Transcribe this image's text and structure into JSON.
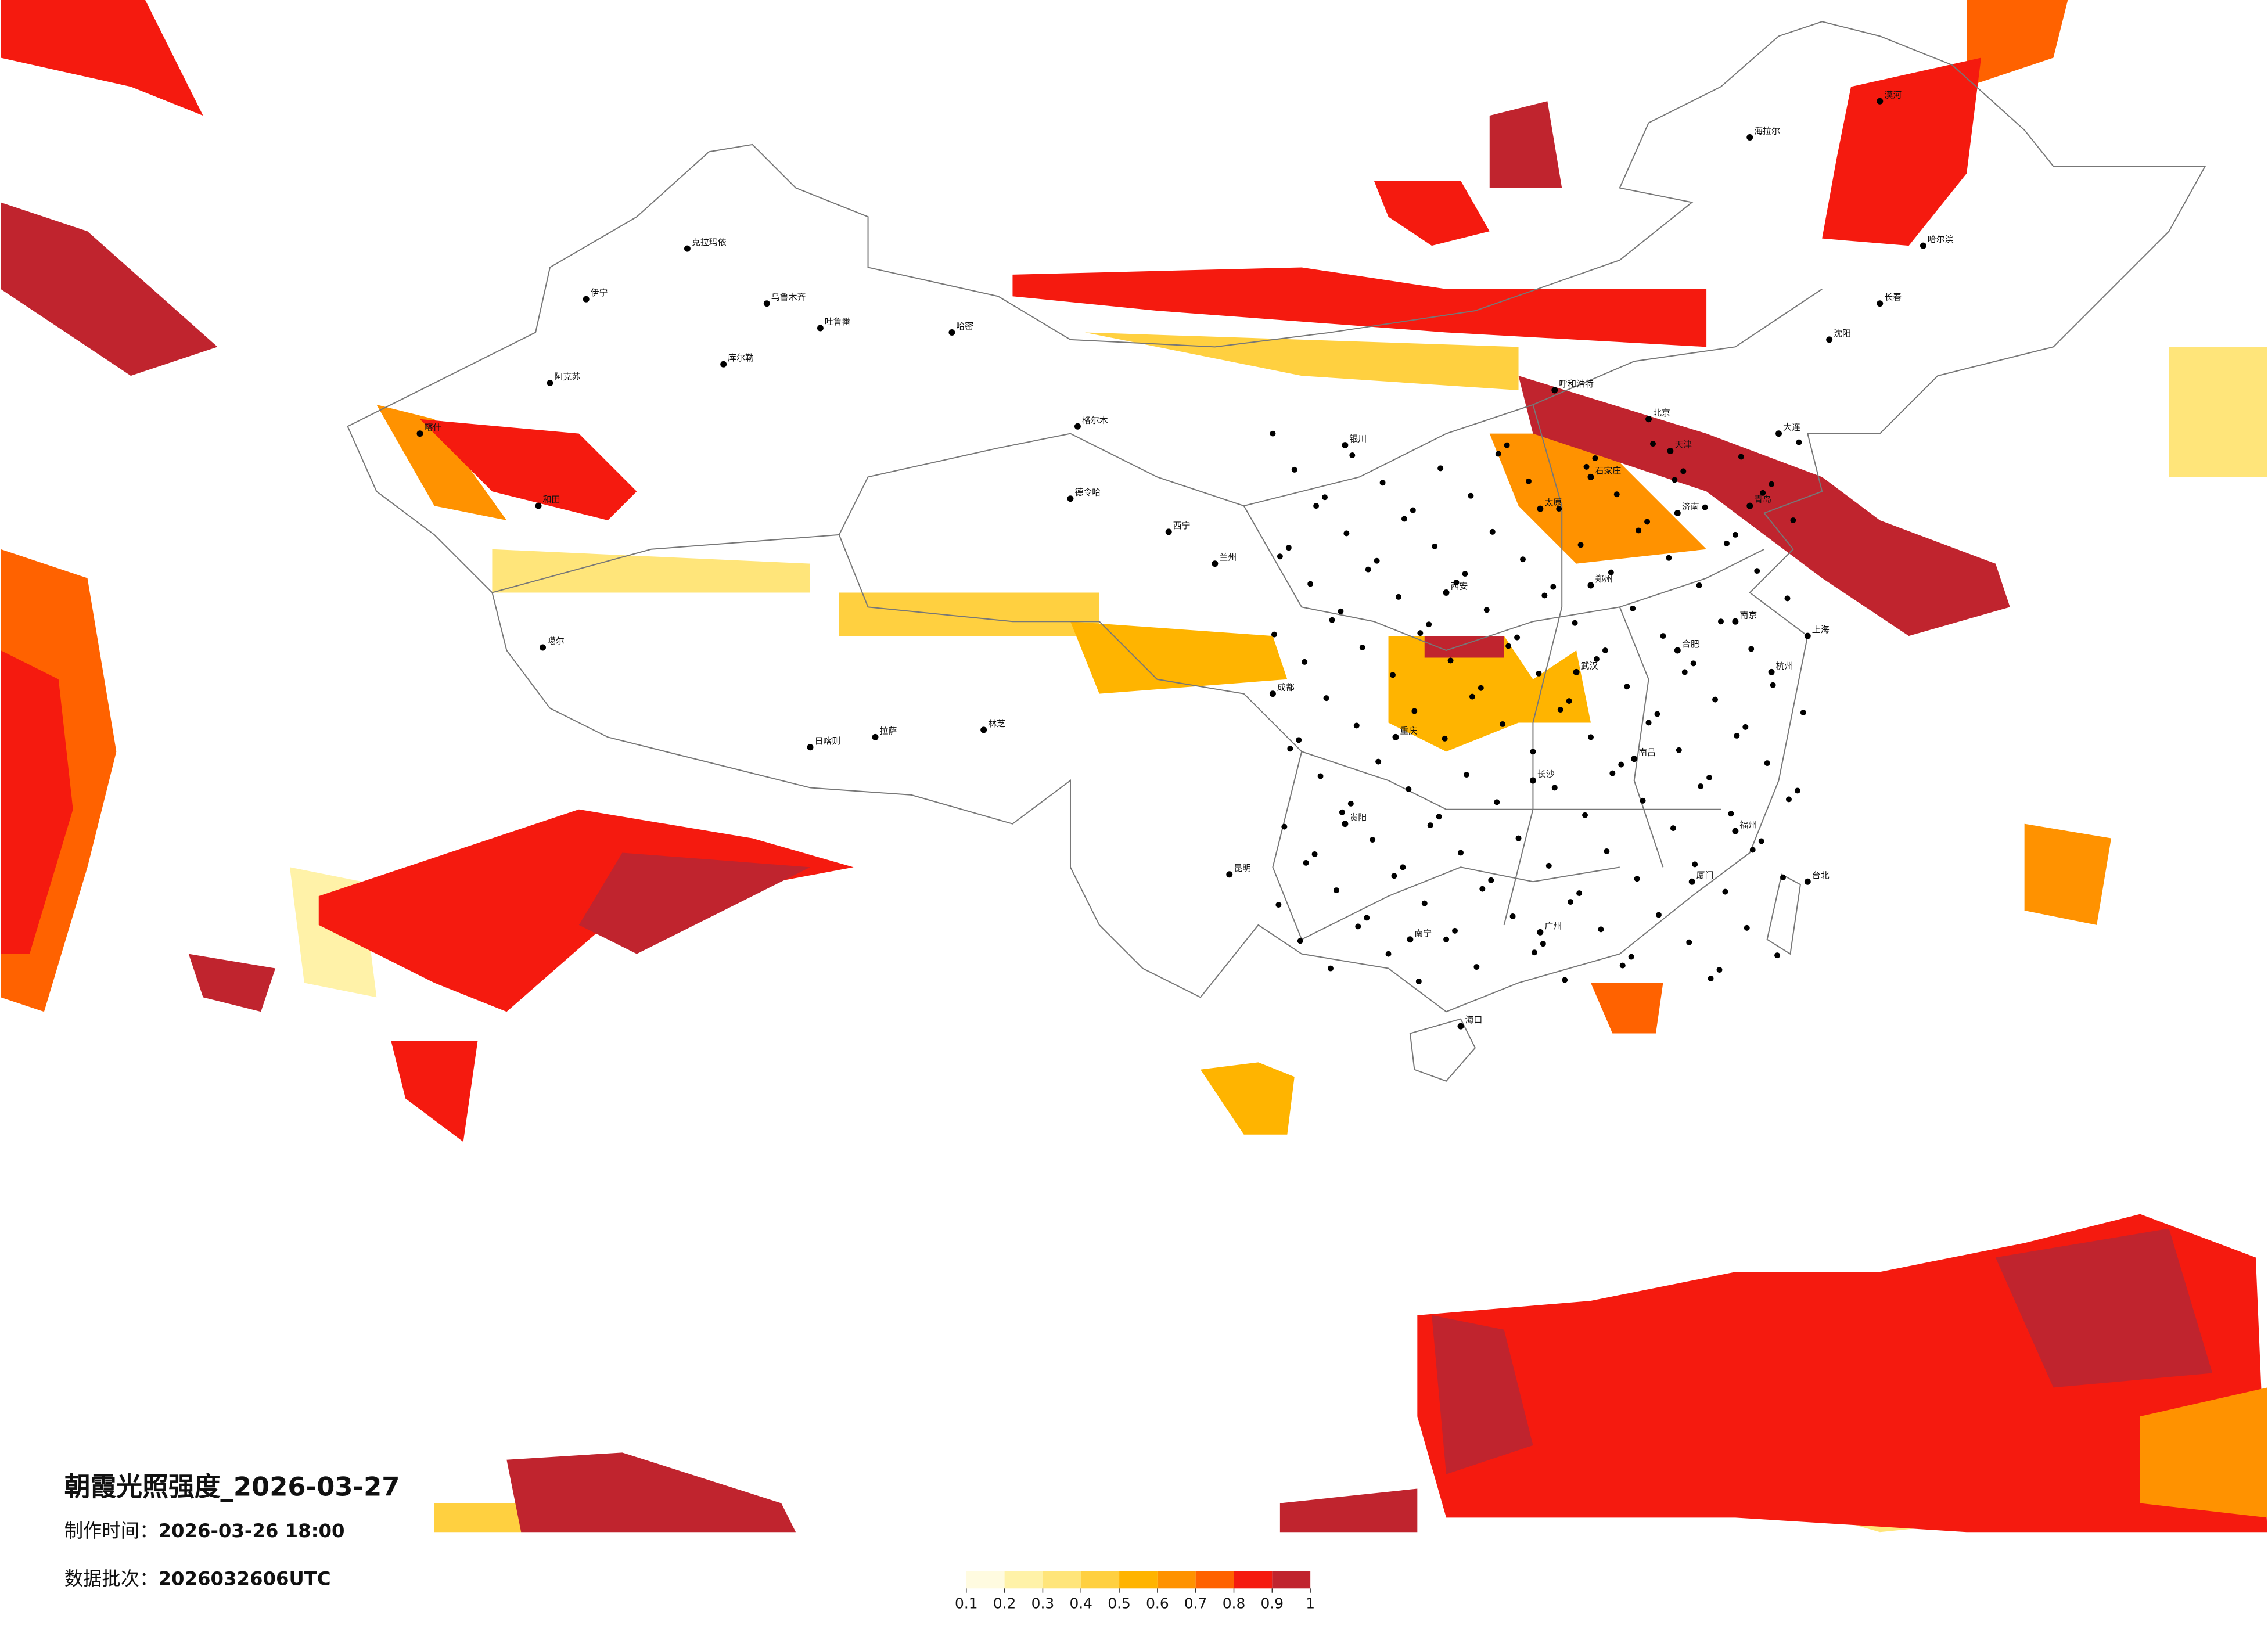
{
  "title": "朝霞光照强度_2026-03-27",
  "made_time": {
    "label": "制作时间：",
    "value": "2026-03-26 18:00"
  },
  "data_batch": {
    "label": "数据批次：",
    "value": "2026032606UTC"
  },
  "legend": {
    "ticks": [
      0.1,
      0.2,
      0.3,
      0.4,
      0.5,
      0.6,
      0.7,
      0.8,
      0.9,
      1
    ],
    "colors": [
      "#fffbe0",
      "#fff2a8",
      "#ffe57a",
      "#ffd040",
      "#ffb400",
      "#ff9200",
      "#ff6200",
      "#f51a0f",
      "#c0242e"
    ]
  },
  "cities": [
    "伊宁",
    "克拉玛依",
    "乌鲁木齐",
    "吐鲁番",
    "哈密",
    "阿克苏",
    "库尔勒",
    "喀什",
    "和田",
    "噶尔",
    "日喀则",
    "拉萨",
    "林芝",
    "格尔木",
    "德令哈",
    "西宁",
    "兰州",
    "银川",
    "呼和浩特",
    "北京",
    "天津",
    "石家庄",
    "太原",
    "济南",
    "郑州",
    "西安",
    "成都",
    "重庆",
    "武汉",
    "长沙",
    "南昌",
    "合肥",
    "南京",
    "上海",
    "杭州",
    "福州",
    "广州",
    "南宁",
    "昆明",
    "贵阳",
    "海口",
    "沈阳",
    "长春",
    "哈尔滨",
    "台北",
    "海拉尔",
    "大连",
    "青岛",
    "厦门",
    "漠河"
  ]
}
